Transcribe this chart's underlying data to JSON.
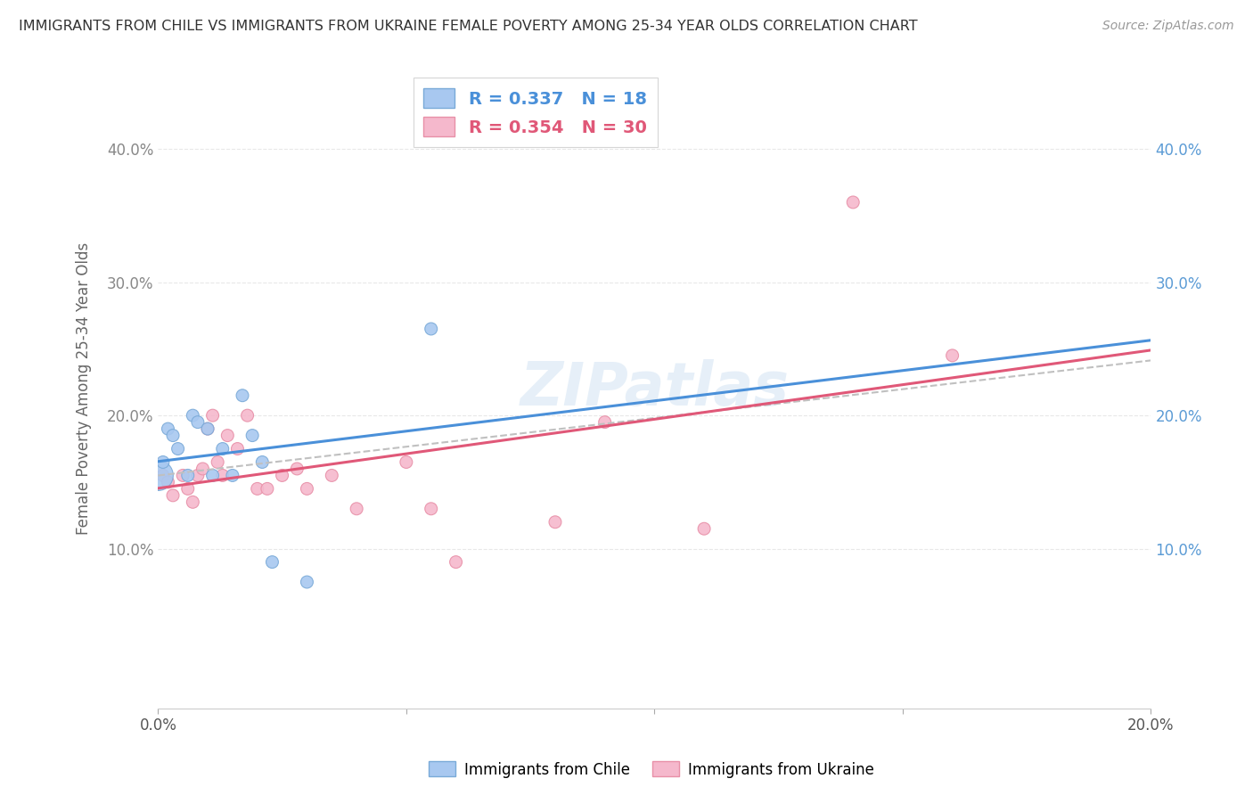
{
  "title": "IMMIGRANTS FROM CHILE VS IMMIGRANTS FROM UKRAINE FEMALE POVERTY AMONG 25-34 YEAR OLDS CORRELATION CHART",
  "source": "Source: ZipAtlas.com",
  "ylabel": "Female Poverty Among 25-34 Year Olds",
  "xlim": [
    0.0,
    0.2
  ],
  "ylim": [
    -0.02,
    0.46
  ],
  "xticks": [
    0.0,
    0.2
  ],
  "xtick_labels": [
    "0.0%",
    "20.0%"
  ],
  "yticks": [
    0.1,
    0.2,
    0.3,
    0.4
  ],
  "ytick_labels": [
    "10.0%",
    "20.0%",
    "30.0%",
    "40.0%"
  ],
  "right_ytick_colors": [
    "#5b9bd5",
    "#5b9bd5",
    "#5b9bd5",
    "#5b9bd5"
  ],
  "legend_label_chile": "R = 0.337   N = 18",
  "legend_label_ukraine": "R = 0.354   N = 30",
  "bottom_legend_chile": "Immigrants from Chile",
  "bottom_legend_ukraine": "Immigrants from Ukraine",
  "chile_color": "#a8c8f0",
  "ukraine_color": "#f5b8cc",
  "chile_edge": "#7aaad8",
  "ukraine_edge": "#e890a8",
  "trend_chile_color": "#4a90d9",
  "trend_ukraine_color": "#e05878",
  "trend_gray_color": "#c0c0c0",
  "background_color": "#ffffff",
  "grid_color": "#e8e8e8",
  "watermark": "ZIPatlas",
  "chile_data_x": [
    0.0,
    0.001,
    0.002,
    0.003,
    0.004,
    0.006,
    0.007,
    0.008,
    0.01,
    0.011,
    0.013,
    0.015,
    0.017,
    0.019,
    0.021,
    0.023,
    0.03,
    0.055
  ],
  "chile_data_y": [
    0.155,
    0.165,
    0.19,
    0.185,
    0.175,
    0.155,
    0.2,
    0.195,
    0.19,
    0.155,
    0.175,
    0.155,
    0.215,
    0.185,
    0.165,
    0.09,
    0.075,
    0.265
  ],
  "chile_sizes": [
    600,
    100,
    100,
    100,
    100,
    100,
    100,
    100,
    100,
    100,
    100,
    100,
    100,
    100,
    100,
    100,
    100,
    100
  ],
  "ukraine_data_x": [
    0.001,
    0.002,
    0.003,
    0.005,
    0.006,
    0.007,
    0.008,
    0.009,
    0.01,
    0.011,
    0.012,
    0.013,
    0.014,
    0.016,
    0.018,
    0.02,
    0.022,
    0.025,
    0.028,
    0.03,
    0.035,
    0.04,
    0.05,
    0.055,
    0.06,
    0.08,
    0.09,
    0.11,
    0.14,
    0.16
  ],
  "ukraine_data_y": [
    0.155,
    0.15,
    0.14,
    0.155,
    0.145,
    0.135,
    0.155,
    0.16,
    0.19,
    0.2,
    0.165,
    0.155,
    0.185,
    0.175,
    0.2,
    0.145,
    0.145,
    0.155,
    0.16,
    0.145,
    0.155,
    0.13,
    0.165,
    0.13,
    0.09,
    0.12,
    0.195,
    0.115,
    0.36,
    0.245
  ],
  "ukraine_sizes": [
    100,
    100,
    100,
    100,
    100,
    100,
    100,
    100,
    100,
    100,
    100,
    100,
    100,
    100,
    100,
    100,
    100,
    100,
    100,
    100,
    100,
    100,
    100,
    100,
    100,
    100,
    100,
    100,
    100,
    100
  ]
}
